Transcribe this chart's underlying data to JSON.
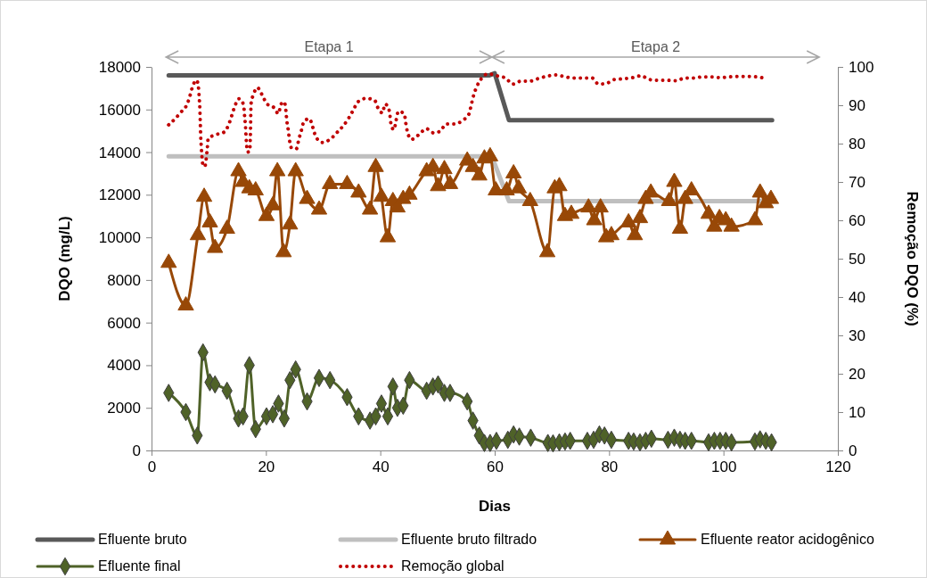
{
  "chart_data": {
    "type": "line",
    "xlabel": "Dias",
    "ylabel": "DQO (mg/L)",
    "y2label": "Remoção DQO (%)",
    "xlim": [
      0,
      120
    ],
    "xticks": [
      0,
      20,
      40,
      60,
      80,
      100,
      120
    ],
    "ylim": [
      0,
      18000
    ],
    "yticks": [
      0,
      2000,
      4000,
      6000,
      8000,
      10000,
      12000,
      14000,
      16000,
      18000
    ],
    "y2lim": [
      0,
      100
    ],
    "y2ticks": [
      0,
      10,
      20,
      30,
      40,
      50,
      60,
      70,
      80,
      90,
      100
    ],
    "grid": false,
    "legend": "bottom",
    "annotations": [
      "Etapa 1",
      "Etapa 2"
    ],
    "series": [
      {
        "name": "Efluente bruto",
        "color": "#595959",
        "marker": "none",
        "line_style": "solid",
        "x": [
          3,
          59,
          60,
          62.5,
          108.5
        ],
        "values": [
          17600,
          17600,
          17700,
          15500,
          15500
        ]
      },
      {
        "name": "Efluente bruto filtrado",
        "color": "#bfbfbf",
        "marker": "none",
        "line_style": "solid",
        "x": [
          3,
          59.5,
          62.5,
          108.5
        ],
        "values": [
          13800,
          13800,
          11700,
          11700
        ]
      },
      {
        "name": "Efluente reator acidogênico",
        "color": "#984807",
        "marker": "triangle",
        "line_style": "solid",
        "x": [
          3,
          6,
          8.1,
          9.2,
          10.2,
          11.1,
          13.2,
          15.2,
          16,
          17.1,
          18.2,
          20.1,
          21.2,
          22,
          23.1,
          24.2,
          25.2,
          27.2,
          29.3,
          31.2,
          34.2,
          36.2,
          38.2,
          39.2,
          40.2,
          41.3,
          42.2,
          43,
          44,
          45.1,
          48.1,
          49.2,
          50.1,
          51.2,
          52.2,
          55.2,
          56.2,
          57.3,
          58.2,
          59.2,
          60.2,
          62.1,
          63.3,
          64.2,
          66.2,
          69.2,
          70.5,
          71.3,
          72.3,
          73.4,
          76.4,
          77.4,
          78.5,
          79.5,
          80.4,
          83.4,
          84.5,
          85.4,
          86.4,
          87.3,
          90.5,
          91.4,
          92.4,
          93.3,
          94.4,
          97.4,
          98.4,
          99.3,
          100.4,
          101.4,
          105.5,
          106.4,
          107.4,
          108.3
        ],
        "values": [
          8800,
          6800,
          10100,
          11900,
          10700,
          9500,
          10400,
          13100,
          12600,
          12300,
          12200,
          11000,
          11500,
          13100,
          9300,
          10600,
          13100,
          11800,
          11300,
          12500,
          12500,
          12100,
          11300,
          13300,
          11900,
          10000,
          11700,
          11400,
          11800,
          12000,
          13100,
          13300,
          12400,
          13200,
          12500,
          13600,
          13300,
          12900,
          13700,
          13800,
          12200,
          12200,
          13000,
          12300,
          11700,
          9300,
          12300,
          12400,
          11000,
          11100,
          11400,
          10800,
          11400,
          10000,
          10100,
          10700,
          10100,
          10900,
          11800,
          12100,
          11700,
          12600,
          10400,
          11800,
          12200,
          11100,
          10500,
          10900,
          10800,
          10500,
          10800,
          12100,
          11600,
          11800
        ]
      },
      {
        "name": "Efluente final",
        "color": "#4f6228",
        "marker": "diamond",
        "line_style": "solid",
        "x": [
          3,
          6,
          8,
          9,
          10.2,
          11.1,
          13.2,
          15.2,
          16,
          17.1,
          18.2,
          20.1,
          21.2,
          22.2,
          23.2,
          24.2,
          25.2,
          27.2,
          29.3,
          31.2,
          34.2,
          36.2,
          38.2,
          39.2,
          40.2,
          41.3,
          42.2,
          43,
          44,
          45.1,
          48.1,
          49.2,
          50.1,
          51.2,
          52.2,
          55.2,
          56.2,
          57.3,
          58.2,
          59.2,
          60.3,
          62.3,
          63.3,
          64.3,
          66.3,
          69.3,
          70.2,
          71.3,
          72.3,
          73.2,
          76.2,
          77.3,
          78.3,
          79.2,
          80.4,
          83.4,
          84.3,
          85.4,
          86.4,
          87.4,
          90.3,
          91.4,
          92.4,
          93.3,
          94.4,
          97.4,
          98.4,
          99.4,
          100.4,
          101.4,
          105.5,
          106.4,
          107.4,
          108.4
        ],
        "values": [
          2700,
          1800,
          700,
          4600,
          3200,
          3100,
          2800,
          1500,
          1600,
          4000,
          1000,
          1600,
          1700,
          2200,
          1500,
          3300,
          3800,
          2300,
          3400,
          3300,
          2500,
          1600,
          1400,
          1600,
          2200,
          1600,
          3000,
          2000,
          2100,
          3300,
          2800,
          3000,
          3100,
          2700,
          2700,
          2300,
          1400,
          700,
          350,
          350,
          450,
          500,
          750,
          650,
          600,
          350,
          330,
          380,
          420,
          450,
          450,
          500,
          750,
          700,
          500,
          450,
          420,
          380,
          450,
          550,
          500,
          600,
          500,
          450,
          450,
          380,
          450,
          450,
          450,
          380,
          420,
          520,
          450,
          380
        ]
      },
      {
        "name": "Remoção global",
        "color": "#c00000",
        "marker": "none",
        "line_style": "dotted",
        "axis": "y2",
        "x": [
          3,
          4.2,
          5.2,
          6.2,
          6.75,
          7.2,
          7.9,
          8.25,
          8.35,
          8.45,
          8.5,
          8.55,
          8.6,
          8.7,
          8.8,
          9,
          9.3,
          9.75,
          9.9,
          11.2,
          12.7,
          13.5,
          14.05,
          14.55,
          15.3,
          16.1,
          16.25,
          16.4,
          16.5,
          16.6,
          16.8,
          17.2,
          17.25,
          17.3,
          17.33,
          17.36,
          17.4,
          17.85,
          18.5,
          19.4,
          20.15,
          21.4,
          22.2,
          22.6,
          23.2,
          23.5,
          23.65,
          23.9,
          24.1,
          24.5,
          25.35,
          25.75,
          26.2,
          26.65,
          27.6,
          28.2,
          28.7,
          29.85,
          31.3,
          32.5,
          33.55,
          34.5,
          35.3,
          36.1,
          37.55,
          39,
          39.65,
          40.4,
          40.8,
          41.4,
          41.7,
          41.9,
          42.4,
          42.75,
          43.15,
          44.2,
          44.45,
          44.75,
          45.45,
          46.8,
          48.05,
          49.3,
          50.55,
          51.45,
          52.95,
          54.45,
          55.5,
          55.9,
          56.3,
          56.85,
          57.65,
          58.85,
          60.35,
          61.9,
          63.15,
          64.6,
          66.15,
          67.7,
          69.25,
          70.75,
          72.35,
          73.9,
          75.5,
          77.05,
          78.15,
          79.55,
          80.9,
          82.5,
          84.05,
          85.6,
          87.05,
          88.6,
          90.2,
          91.75,
          93.25,
          94.8,
          96.35,
          97.9,
          99.5,
          101.05,
          102.6,
          104.2,
          105.8,
          107.35
        ],
        "values": [
          84.9,
          86.6,
          88.3,
          90.2,
          92.6,
          95,
          96.5,
          94,
          91.6,
          89.1,
          86.7,
          84.3,
          81.8,
          79.3,
          76.9,
          74.3,
          74,
          78.8,
          81.3,
          82.3,
          83,
          85,
          87.4,
          89.7,
          91.7,
          90.1,
          87.6,
          85.1,
          82.7,
          80.2,
          77.8,
          78,
          80.5,
          83,
          85.5,
          88,
          90.4,
          92.9,
          94.6,
          92.5,
          90.4,
          89.4,
          87.8,
          90.2,
          90.9,
          88.5,
          86,
          83.6,
          81.2,
          78.8,
          78.7,
          81.1,
          83.4,
          85.8,
          86.5,
          84.2,
          81.9,
          80.3,
          81.2,
          83,
          84.7,
          86.7,
          88.8,
          90.9,
          91.8,
          91.3,
          89.1,
          88,
          90.3,
          89.5,
          87.2,
          84.8,
          83.6,
          86,
          88.4,
          87.8,
          85.4,
          83,
          81.1,
          82.4,
          83.9,
          82.8,
          83.3,
          85.1,
          85.1,
          86.1,
          87.7,
          90.1,
          92.5,
          94.8,
          96.9,
          98.2,
          97.7,
          97.1,
          95.5,
          96.3,
          96.3,
          97,
          97.6,
          97.9,
          97.4,
          97.1,
          97.1,
          97.1,
          95.5,
          95.7,
          96.7,
          96.9,
          97.2,
          97.7,
          96.7,
          96.5,
          96.5,
          96.4,
          97.1,
          97.1,
          97.4,
          97.4,
          97.2,
          97.4,
          97.5,
          97.5,
          97.4,
          97
        ]
      }
    ]
  }
}
